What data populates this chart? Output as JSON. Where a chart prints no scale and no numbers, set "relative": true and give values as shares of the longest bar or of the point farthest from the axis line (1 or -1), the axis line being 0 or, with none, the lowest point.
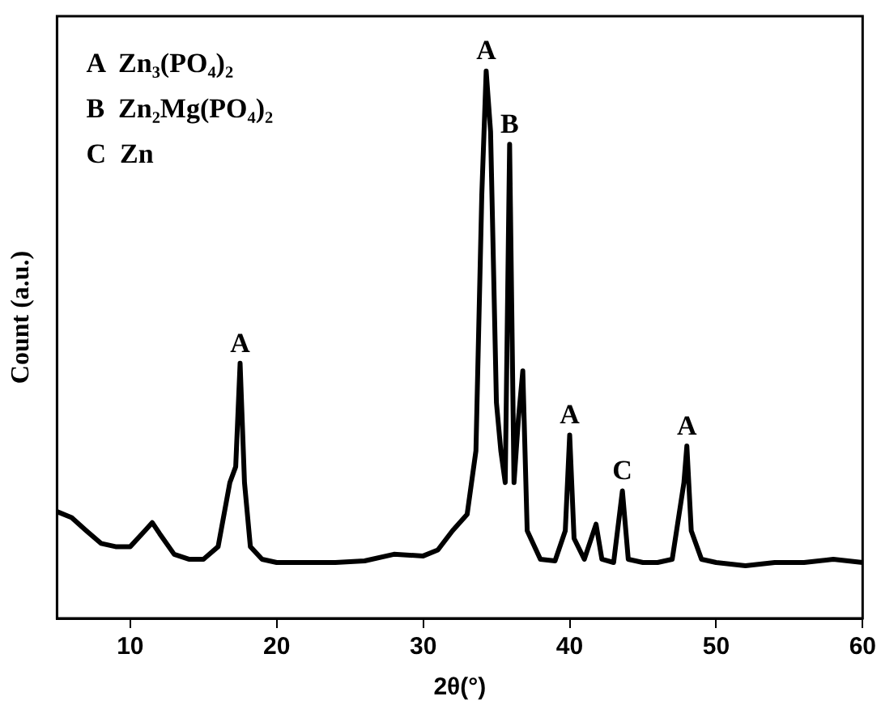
{
  "chart_data": {
    "type": "line",
    "relative": true,
    "xlabel": "2θ(°)",
    "ylabel": "Count (a.u.)",
    "xlim": [
      5,
      60
    ],
    "xticks": [
      10,
      20,
      30,
      40,
      50,
      60
    ],
    "color": "#000000",
    "x": [
      5,
      6,
      7,
      8,
      9,
      10,
      11,
      11.5,
      12,
      13,
      14,
      15,
      16,
      16.8,
      17.2,
      17.5,
      17.8,
      18.2,
      19,
      20,
      22,
      24,
      26,
      28,
      30,
      31,
      32,
      33,
      33.6,
      34.0,
      34.3,
      34.6,
      35,
      35.3,
      35.6,
      35.9,
      36.2,
      36.5,
      36.8,
      37.1,
      38,
      39,
      39.7,
      40,
      40.3,
      41,
      41.8,
      42.2,
      43,
      43.6,
      44,
      45,
      46,
      47,
      47.8,
      48.0,
      48.3,
      49,
      50,
      52,
      54,
      56,
      58,
      60
    ],
    "values": [
      0.195,
      0.184,
      0.16,
      0.137,
      0.131,
      0.131,
      0.16,
      0.175,
      0.155,
      0.117,
      0.108,
      0.108,
      0.131,
      0.248,
      0.277,
      0.466,
      0.248,
      0.131,
      0.108,
      0.102,
      0.102,
      0.102,
      0.105,
      0.117,
      0.114,
      0.125,
      0.16,
      0.19,
      0.306,
      0.773,
      1,
      0.889,
      0.394,
      0.306,
      0.248,
      0.866,
      0.248,
      0.364,
      0.452,
      0.16,
      0.108,
      0.105,
      0.16,
      0.335,
      0.146,
      0.108,
      0.172,
      0.108,
      0.102,
      0.233,
      0.108,
      0.102,
      0.102,
      0.108,
      0.248,
      0.315,
      0.16,
      0.108,
      0.102,
      0.096,
      0.102,
      0.102,
      0.108,
      0.102
    ],
    "annotations": [
      "A  Zn₃(PO₄)₂",
      "B  Zn₂Mg(PO₄)₂",
      "C  Zn",
      {
        "text": "A",
        "x": 17.5,
        "y": 0.466
      },
      {
        "text": "A",
        "x": 34.3,
        "y": 1
      },
      {
        "text": "B",
        "x": 35.9,
        "y": 0.866
      },
      {
        "text": "A",
        "x": 40,
        "y": 0.335
      },
      {
        "text": "C",
        "x": 43.6,
        "y": 0.233
      },
      {
        "text": "A",
        "x": 48,
        "y": 0.315
      }
    ]
  }
}
